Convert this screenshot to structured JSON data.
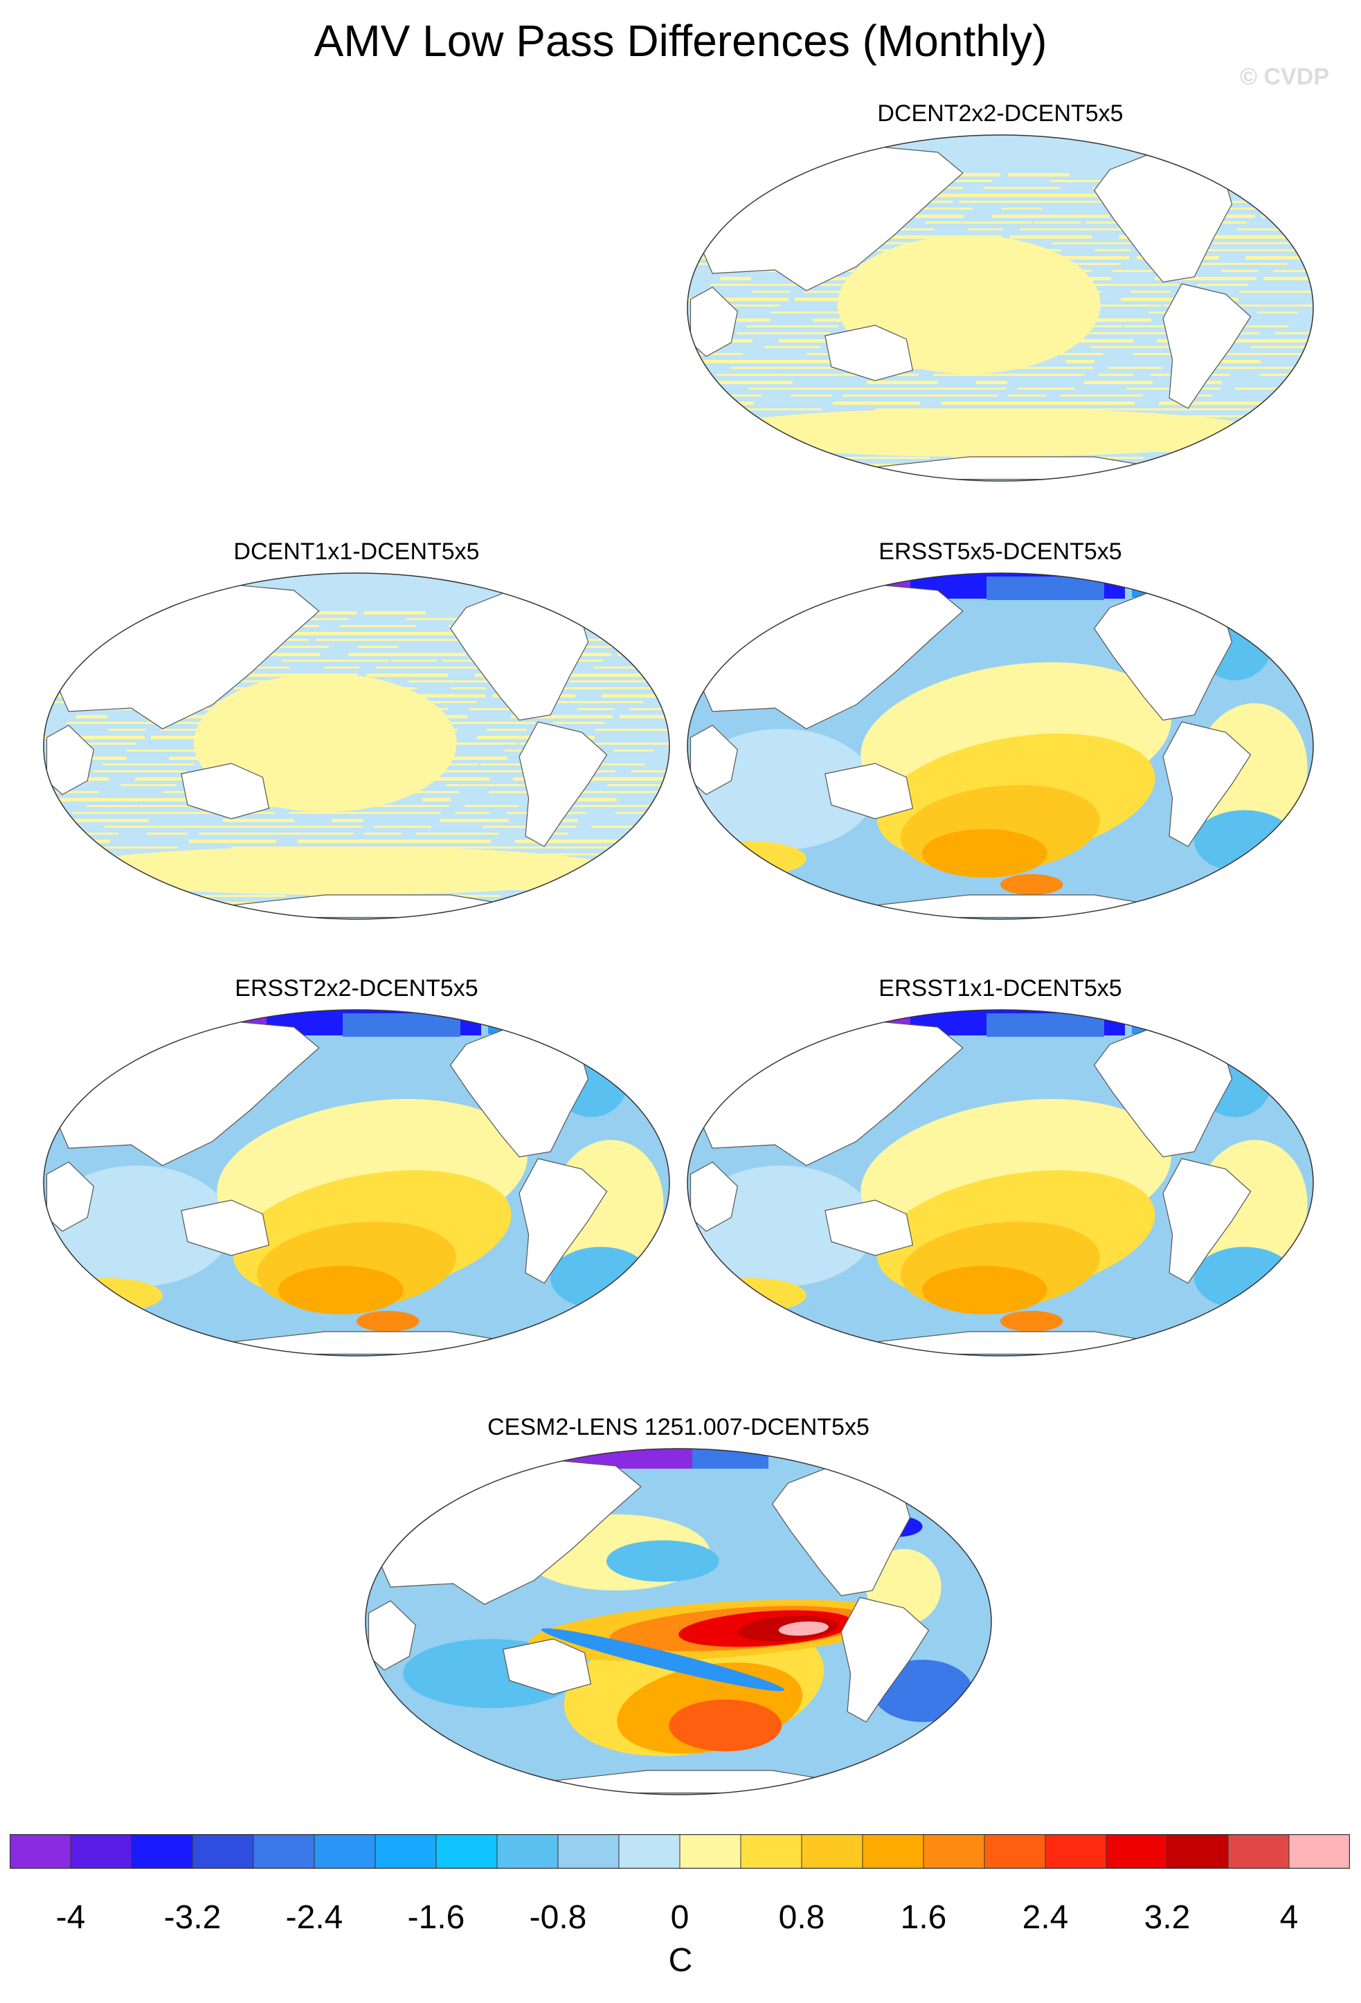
{
  "figure": {
    "title": "AMV Low Pass Differences (Monthly)",
    "credit": "© CVDP"
  },
  "panels": [
    {
      "title": "DCENT2x2-DCENT5x5",
      "pattern": "stripes"
    },
    {
      "title": "DCENT1x1-DCENT5x5",
      "pattern": "stripes"
    },
    {
      "title": "ERSST5x5-DCENT5x5",
      "pattern": "ersst"
    },
    {
      "title": "ERSST2x2-DCENT5x5",
      "pattern": "ersst"
    },
    {
      "title": "ERSST1x1-DCENT5x5",
      "pattern": "ersst"
    },
    {
      "title": "CESM2-LENS 1251.007-DCENT5x5",
      "pattern": "cesm"
    }
  ],
  "colorbar": {
    "units": "C",
    "min": -4.4,
    "max": 4.4,
    "tick_labels": [
      "-4",
      "-3.2",
      "-2.4",
      "-1.6",
      "-0.8",
      "0",
      "0.8",
      "1.6",
      "2.4",
      "3.2",
      "4"
    ],
    "tick_values": [
      -4,
      -3.2,
      -2.4,
      -1.6,
      -0.8,
      0,
      0.8,
      1.6,
      2.4,
      3.2,
      4
    ],
    "colors": [
      "#8a2be2",
      "#5a1de8",
      "#1a1aff",
      "#2f4ee0",
      "#3b78e8",
      "#2a95f5",
      "#18a8ff",
      "#10c4ff",
      "#5ac0f0",
      "#96cff0",
      "#bfe3f7",
      "#fff6a0",
      "#ffe040",
      "#ffc820",
      "#ffaa00",
      "#ff8a10",
      "#ff6010",
      "#ff2a10",
      "#ee0000",
      "#c40000",
      "#e04848",
      "#ffb4b8"
    ]
  }
}
